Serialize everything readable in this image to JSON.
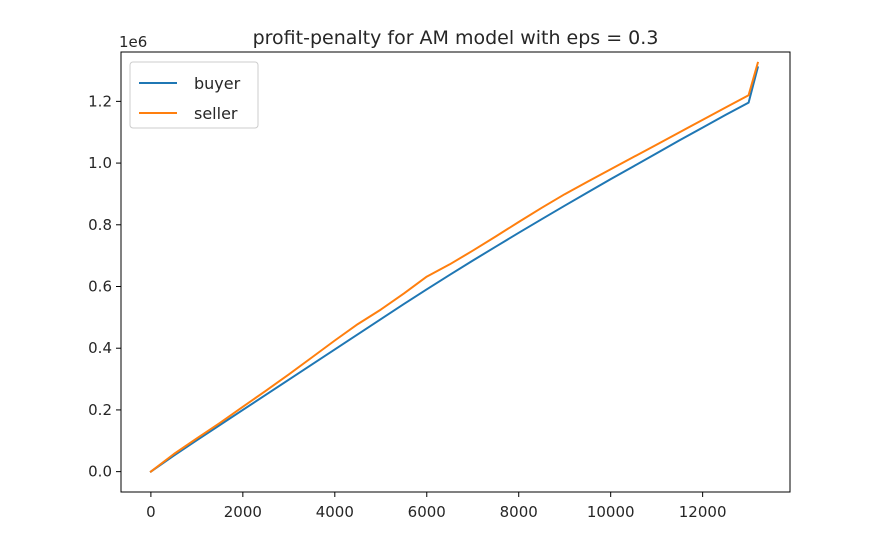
{
  "chart_data": {
    "type": "line",
    "title": "profit-penalty for AM model with eps = 0.3",
    "xlabel": "",
    "ylabel": "",
    "y_offset_label": "1e6",
    "xlim": [
      -650,
      13900
    ],
    "ylim": [
      -0.066,
      1.36
    ],
    "x_ticks": [
      0,
      2000,
      4000,
      6000,
      8000,
      10000,
      12000
    ],
    "x_tick_labels": [
      "0",
      "2000",
      "4000",
      "6000",
      "8000",
      "10000",
      "12000"
    ],
    "y_ticks": [
      0.0,
      0.2,
      0.4,
      0.6,
      0.8,
      1.0,
      1.2
    ],
    "y_tick_labels": [
      "0.0",
      "0.2",
      "0.4",
      "0.6",
      "0.8",
      "1.0",
      "1.2"
    ],
    "grid": false,
    "legend_position": "top-left",
    "series": [
      {
        "name": "buyer",
        "color": "#1f77b4",
        "x": [
          0,
          500,
          1000,
          1500,
          2000,
          2500,
          3000,
          3500,
          4000,
          4500,
          5000,
          5500,
          6000,
          6500,
          7000,
          7500,
          8000,
          8500,
          9000,
          9500,
          10000,
          10500,
          11000,
          11500,
          12000,
          12500,
          13000,
          13200
        ],
        "y": [
          0.0,
          0.052,
          0.102,
          0.151,
          0.2,
          0.249,
          0.298,
          0.347,
          0.396,
          0.445,
          0.494,
          0.543,
          0.591,
          0.638,
          0.684,
          0.729,
          0.774,
          0.818,
          0.862,
          0.905,
          0.948,
          0.99,
          1.032,
          1.074,
          1.115,
          1.156,
          1.196,
          1.31
        ]
      },
      {
        "name": "seller",
        "color": "#ff7f0e",
        "x": [
          0,
          500,
          1000,
          1500,
          2000,
          2500,
          3000,
          3500,
          4000,
          4500,
          5000,
          5500,
          6000,
          6500,
          7000,
          7500,
          8000,
          8500,
          9000,
          9500,
          10000,
          10500,
          11000,
          11500,
          12000,
          12500,
          13000,
          13200
        ],
        "y": [
          0.0,
          0.057,
          0.108,
          0.158,
          0.21,
          0.262,
          0.315,
          0.37,
          0.425,
          0.478,
          0.525,
          0.577,
          0.632,
          0.672,
          0.716,
          0.762,
          0.809,
          0.855,
          0.899,
          0.94,
          0.98,
          1.02,
          1.06,
          1.1,
          1.14,
          1.18,
          1.22,
          1.325
        ]
      }
    ]
  }
}
